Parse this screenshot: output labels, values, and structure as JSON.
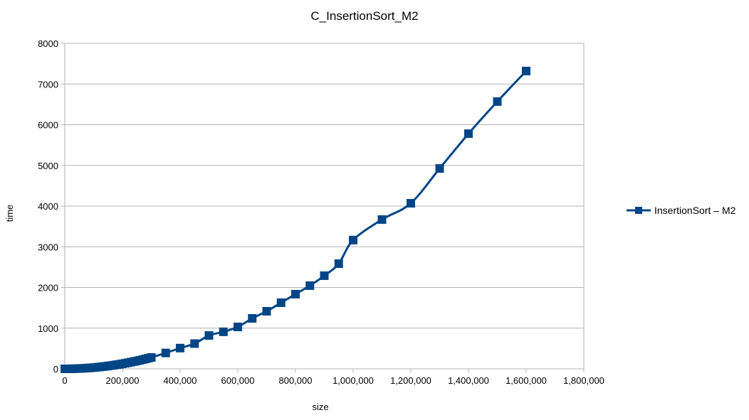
{
  "chart_data": {
    "type": "line",
    "title": "C_InsertionSort_M2",
    "xlabel": "size",
    "ylabel": "time",
    "xlim": [
      0,
      1800000
    ],
    "ylim": [
      0,
      8000
    ],
    "xticks": [
      0,
      200000,
      400000,
      600000,
      800000,
      1000000,
      1200000,
      1400000,
      1600000,
      1800000
    ],
    "xtick_labels": [
      "0",
      "200,000",
      "400,000",
      "600,000",
      "800,000",
      "1,000,000",
      "1,200,000",
      "1,400,000",
      "1,600,000",
      "1,800,000"
    ],
    "yticks": [
      0,
      1000,
      2000,
      3000,
      4000,
      5000,
      6000,
      7000,
      8000
    ],
    "ytick_labels": [
      "0",
      "1000",
      "2000",
      "3000",
      "4000",
      "5000",
      "6000",
      "7000",
      "8000"
    ],
    "grid": "horizontal",
    "legend": "right",
    "color": "#004586",
    "marker": "square",
    "smooth": true,
    "series": [
      {
        "name": "InsertionSort – M2",
        "x": [
          0,
          10000,
          20000,
          30000,
          40000,
          50000,
          60000,
          70000,
          80000,
          90000,
          100000,
          110000,
          120000,
          130000,
          140000,
          150000,
          160000,
          170000,
          180000,
          190000,
          200000,
          210000,
          220000,
          230000,
          240000,
          250000,
          260000,
          270000,
          280000,
          290000,
          300000,
          350000,
          400000,
          450000,
          500000,
          550000,
          600000,
          650000,
          700000,
          750000,
          800000,
          850000,
          900000,
          950000,
          1000000,
          1100000,
          1200000,
          1300000,
          1400000,
          1500000,
          1600000
        ],
        "y": [
          0,
          0,
          1,
          3,
          5,
          8,
          11,
          15,
          20,
          25,
          31,
          38,
          45,
          53,
          61,
          70,
          80,
          90,
          101,
          112,
          124,
          137,
          151,
          165,
          179,
          194,
          210,
          227,
          244,
          262,
          280,
          390,
          510,
          620,
          820,
          910,
          1030,
          1240,
          1415,
          1625,
          1835,
          2045,
          2290,
          2585,
          3165,
          3670,
          4070,
          4925,
          5780,
          6570,
          7320
        ]
      }
    ]
  }
}
